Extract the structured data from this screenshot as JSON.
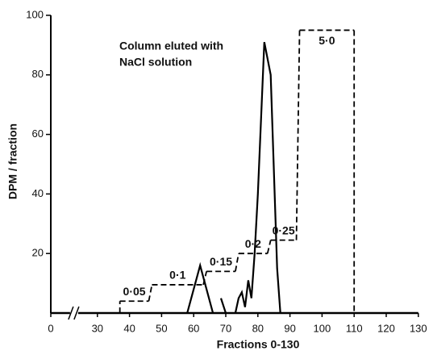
{
  "chart_data": {
    "type": "line",
    "x_label": "Fractions 0-130",
    "y_label": "DPM / fraction",
    "annotation": [
      "Column eluted with",
      "NaCl solution"
    ],
    "xlim": [
      0,
      130
    ],
    "ylim": [
      0,
      100
    ],
    "axis_break": [
      5,
      25
    ],
    "xticks": [
      0,
      30,
      40,
      50,
      60,
      70,
      80,
      90,
      100,
      110,
      120,
      130
    ],
    "yticks": [
      20,
      40,
      60,
      80,
      100
    ],
    "series": [
      {
        "name": "DPM",
        "color": "#000000",
        "x": [
          58,
          62,
          66,
          67,
          68.5,
          70,
          71,
          73,
          74,
          75,
          76,
          77,
          78,
          79,
          80,
          82,
          84,
          86,
          87
        ],
        "values": [
          0,
          16,
          0,
          null,
          5,
          0,
          null,
          0,
          5,
          7,
          2,
          11,
          5,
          20,
          40,
          91,
          80,
          15,
          0
        ]
      }
    ],
    "steps": {
      "color": "#000000",
      "items": [
        {
          "label": "0·05",
          "from": 37,
          "to": 46,
          "level": 4
        },
        {
          "label": "0·1",
          "from": 47,
          "to": 63,
          "level": 9.5
        },
        {
          "label": "0·15",
          "from": 64,
          "to": 73,
          "level": 14
        },
        {
          "label": "0·2",
          "from": 74,
          "to": 83,
          "level": 20
        },
        {
          "label": "0·25",
          "from": 84,
          "to": 92,
          "level": 24.5
        },
        {
          "label": "5·0",
          "from": 93,
          "to": 110,
          "level": 95
        }
      ]
    }
  }
}
